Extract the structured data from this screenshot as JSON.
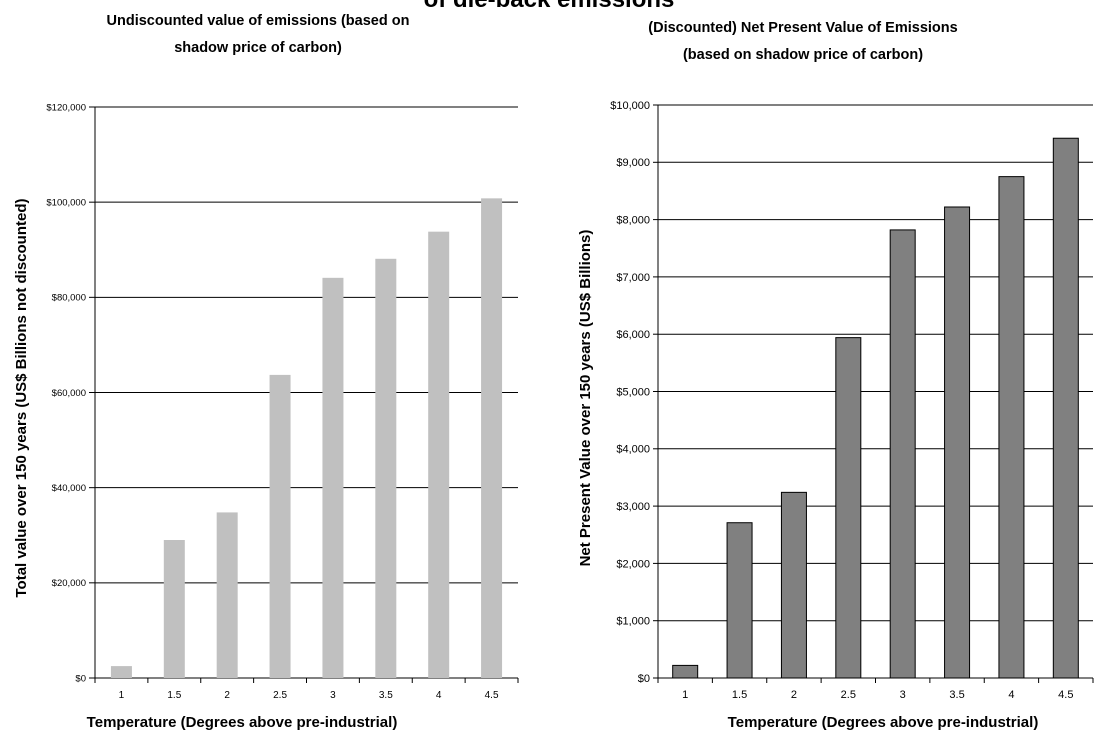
{
  "main_title": "of die-back emissions",
  "chart_data": [
    {
      "type": "bar",
      "title_lines": [
        "Undiscounted value of emissions (based on",
        "shadow price of carbon)"
      ],
      "xlabel": "Temperature (Degrees above pre-industrial)",
      "ylabel": "Total value over 150 years (US$ Billions not discounted)",
      "categories": [
        "1",
        "1.5",
        "2",
        "2.5",
        "3",
        "3.5",
        "4",
        "4.5"
      ],
      "values": [
        2500,
        29000,
        34800,
        63700,
        84100,
        88100,
        93800,
        100800
      ],
      "ylim": [
        0,
        120000
      ],
      "yticks": [
        0,
        20000,
        40000,
        60000,
        80000,
        100000,
        120000
      ],
      "ytick_labels": [
        "$0",
        "$20,000",
        "$40,000",
        "$60,000",
        "$80,000",
        "$100,000",
        "$120,000"
      ],
      "bar_color": "#c0c0c0",
      "bar_stroke": "none",
      "grid": true
    },
    {
      "type": "bar",
      "title_lines": [
        "(Discounted) Net Present Value of Emissions",
        "(based on shadow price of carbon)"
      ],
      "xlabel": "Temperature (Degrees above pre-industrial)",
      "ylabel": "Net Present Value over 150 years (US$ Billions)",
      "categories": [
        "1",
        "1.5",
        "2",
        "2.5",
        "3",
        "3.5",
        "4",
        "4.5"
      ],
      "values": [
        220,
        2710,
        3240,
        5940,
        7820,
        8220,
        8750,
        9420
      ],
      "ylim": [
        0,
        10000
      ],
      "yticks": [
        0,
        1000,
        2000,
        3000,
        4000,
        5000,
        6000,
        7000,
        8000,
        9000,
        10000
      ],
      "ytick_labels": [
        "$0",
        "$1,000",
        "$2,000",
        "$3,000",
        "$4,000",
        "$5,000",
        "$6,000",
        "$7,000",
        "$8,000",
        "$9,000",
        "$10,000"
      ],
      "bar_color": "#808080",
      "bar_stroke": "#000000",
      "grid": true
    }
  ]
}
